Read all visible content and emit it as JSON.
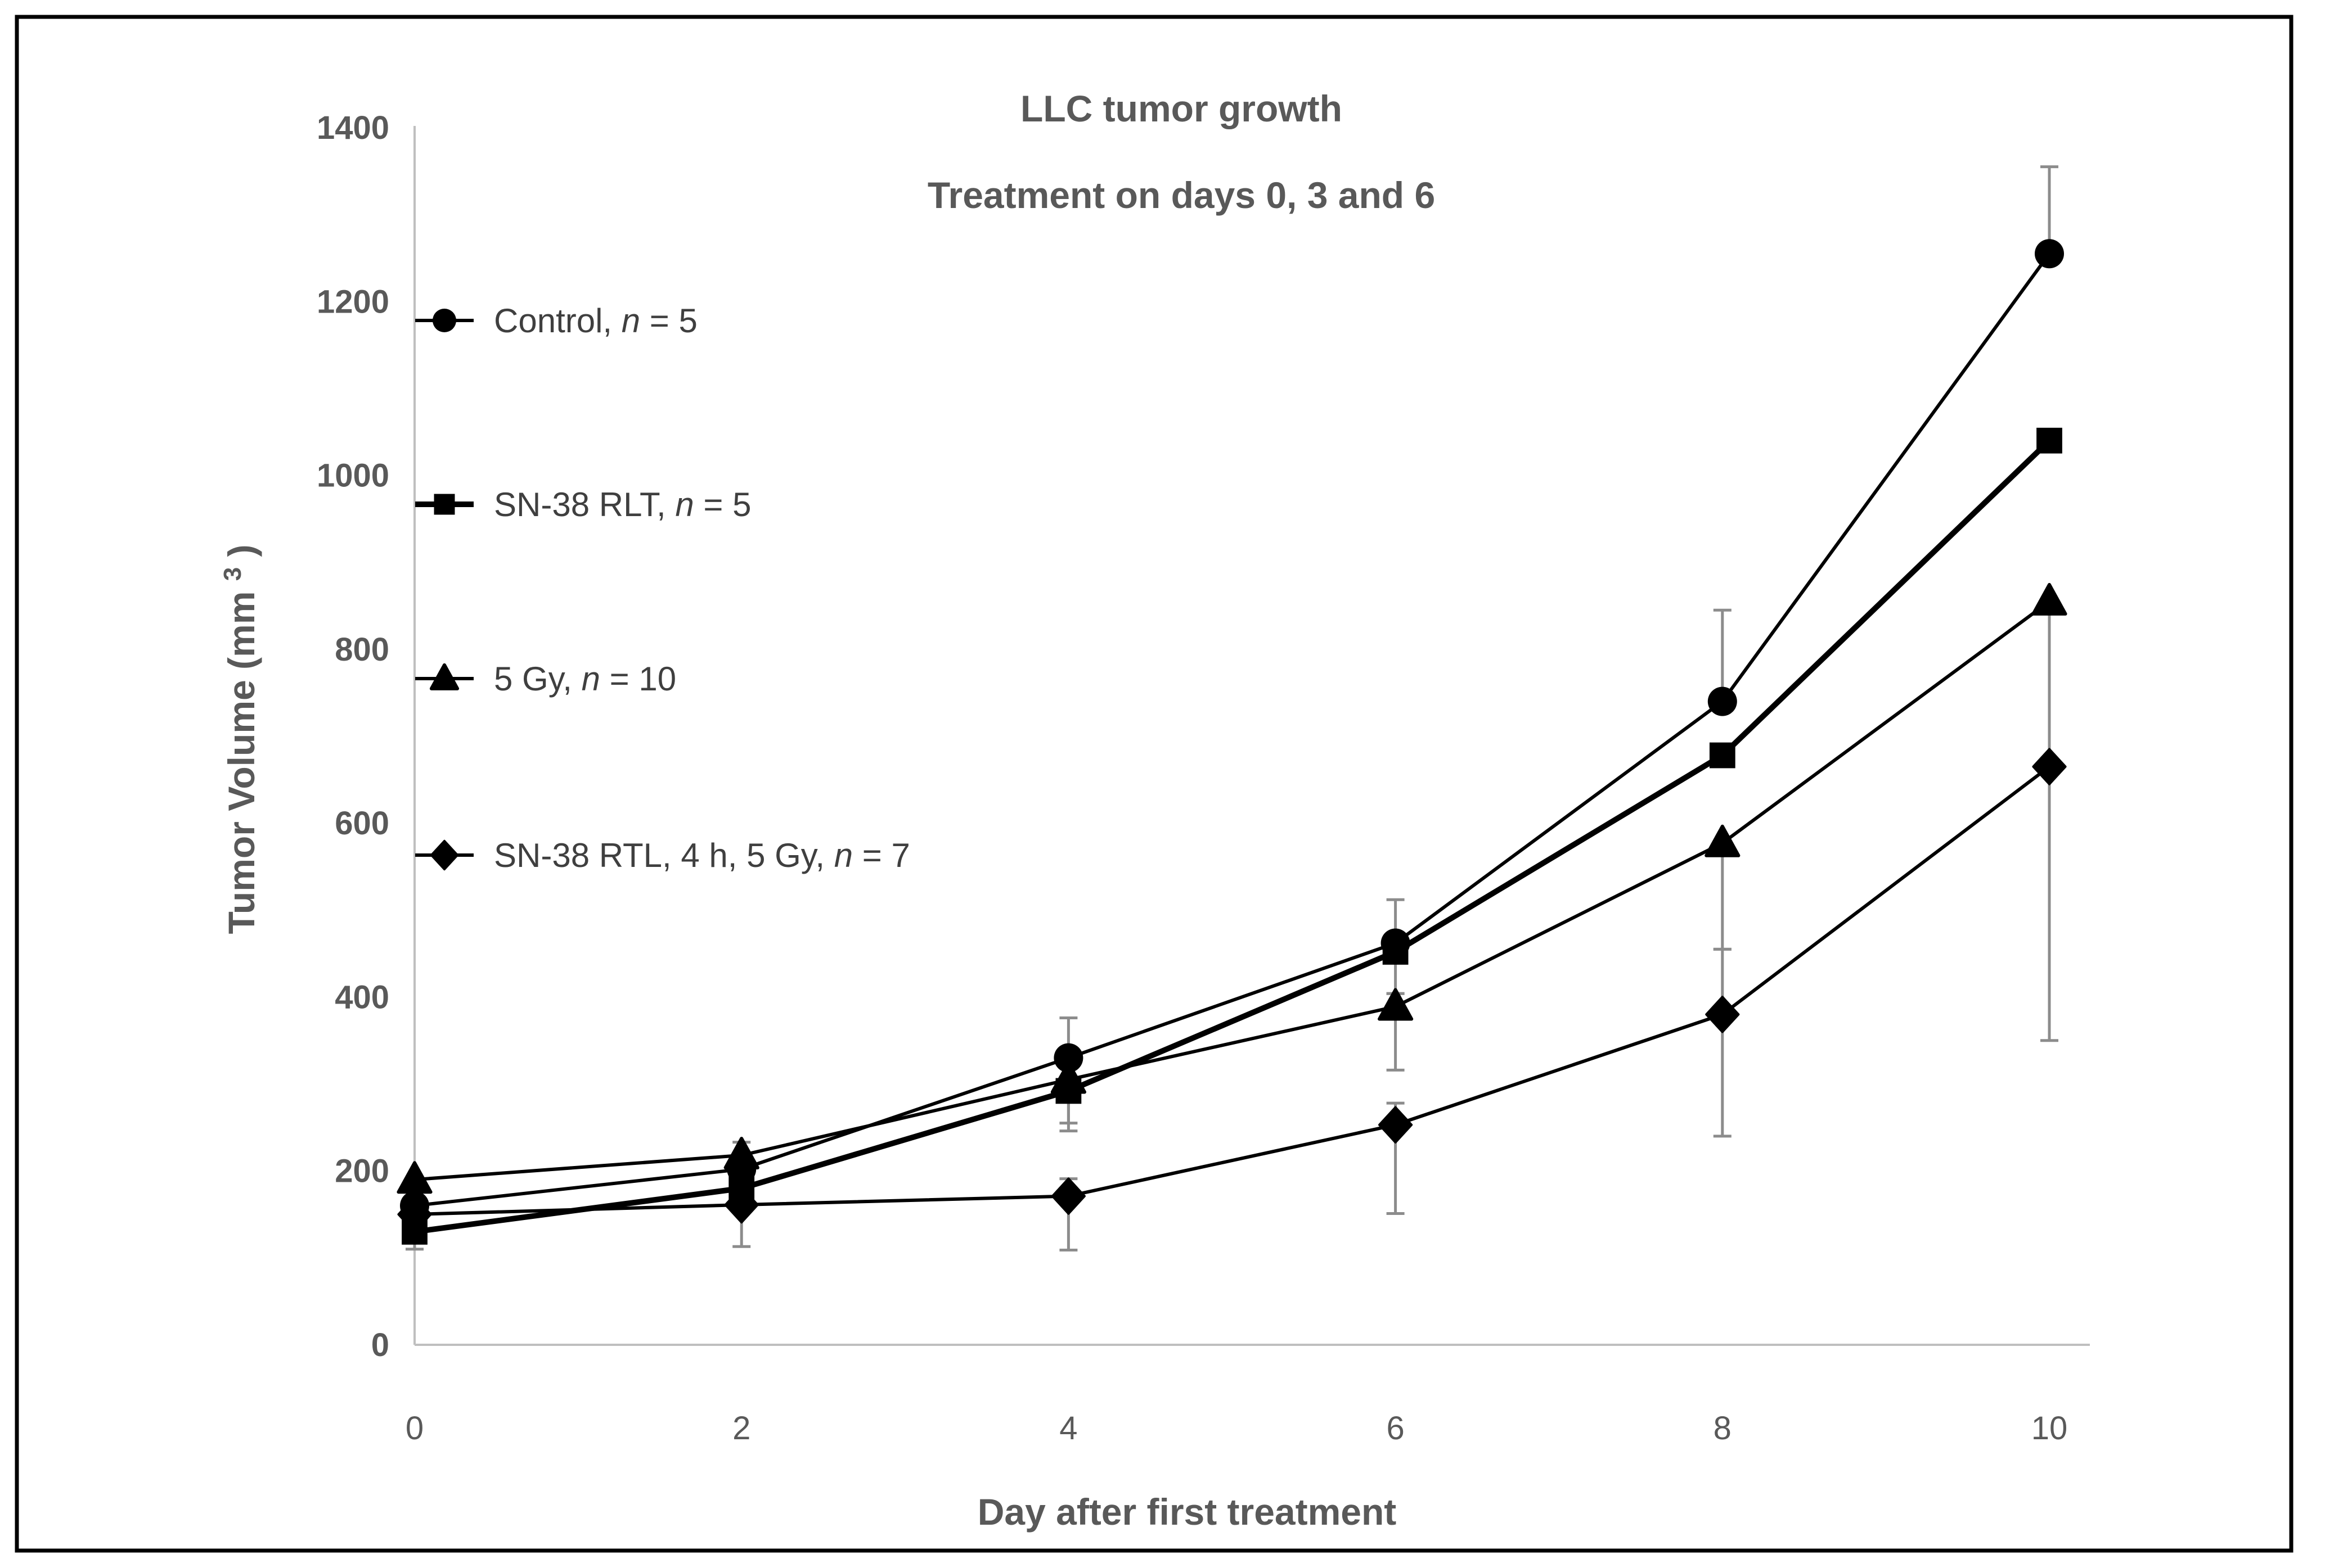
{
  "figure": {
    "border_color": "#000000",
    "background_color": "#ffffff"
  },
  "chart_data": {
    "type": "line",
    "title_line1": "LLC tumor growth",
    "title_line2": "Treatment on days 0, 3 and 6",
    "xlabel": "Day after first treatment",
    "ylabel_main": "Tumor Volume (mm",
    "ylabel_sup": "3",
    "ylabel_close": ")",
    "x": [
      0,
      2,
      4,
      6,
      8,
      10
    ],
    "x_tick_labels": [
      "0",
      "2",
      "4",
      "6",
      "8",
      "10"
    ],
    "y_ticks": [
      0,
      200,
      400,
      600,
      800,
      1000,
      1200,
      1400
    ],
    "xlim": [
      0,
      10
    ],
    "ylim": [
      0,
      1400
    ],
    "grid": false,
    "legend_position": "inside-top-left",
    "series": [
      {
        "name": "Control",
        "marker": "circle",
        "line_width": 6,
        "legend_prefix": "Control, ",
        "legend_n": "n",
        "legend_suffix": " = 5",
        "values": [
          160,
          202,
          330,
          462,
          740,
          1255
        ],
        "err_up": [
          0,
          0,
          46,
          50,
          105,
          100
        ],
        "err_down": [
          0,
          0,
          46,
          58,
          0,
          0
        ]
      },
      {
        "name": "SN-38 RLT",
        "marker": "square",
        "line_width": 10,
        "legend_prefix": "SN-38 RLT, ",
        "legend_n": "n",
        "legend_suffix": " = 5",
        "values": [
          130,
          180,
          292,
          452,
          678,
          1040
        ],
        "err_up": [
          0,
          0,
          0,
          0,
          0,
          0
        ],
        "err_down": [
          20,
          0,
          46,
          0,
          0,
          0
        ]
      },
      {
        "name": "5 Gy",
        "marker": "triangle",
        "line_width": 6,
        "legend_prefix": "5 Gy, ",
        "legend_n": "n",
        "legend_suffix": " = 10",
        "values": [
          190,
          218,
          305,
          389,
          577,
          855
        ],
        "err_up": [
          0,
          15,
          0,
          15,
          0,
          0
        ],
        "err_down": [
          0,
          0,
          50,
          73,
          122,
          0
        ]
      },
      {
        "name": "SN-38 RTL, 4 h, 5 Gy",
        "marker": "diamond",
        "line_width": 6,
        "legend_prefix": "SN-38 RTL, 4 h, 5 Gy, ",
        "legend_n": "n",
        "legend_suffix": " = 7",
        "values": [
          150,
          161,
          171,
          253,
          380,
          665
        ],
        "err_up": [
          0,
          0,
          20,
          25,
          75,
          178
        ],
        "err_down": [
          0,
          48,
          62,
          102,
          140,
          315
        ]
      }
    ],
    "colors": {
      "series": "#000000",
      "error_bar": "#8c8c8c",
      "axis_line": "#bfbfbf",
      "tick_text": "#595959",
      "title_text": "#595959",
      "legend_text": "#3f3f3f"
    }
  }
}
